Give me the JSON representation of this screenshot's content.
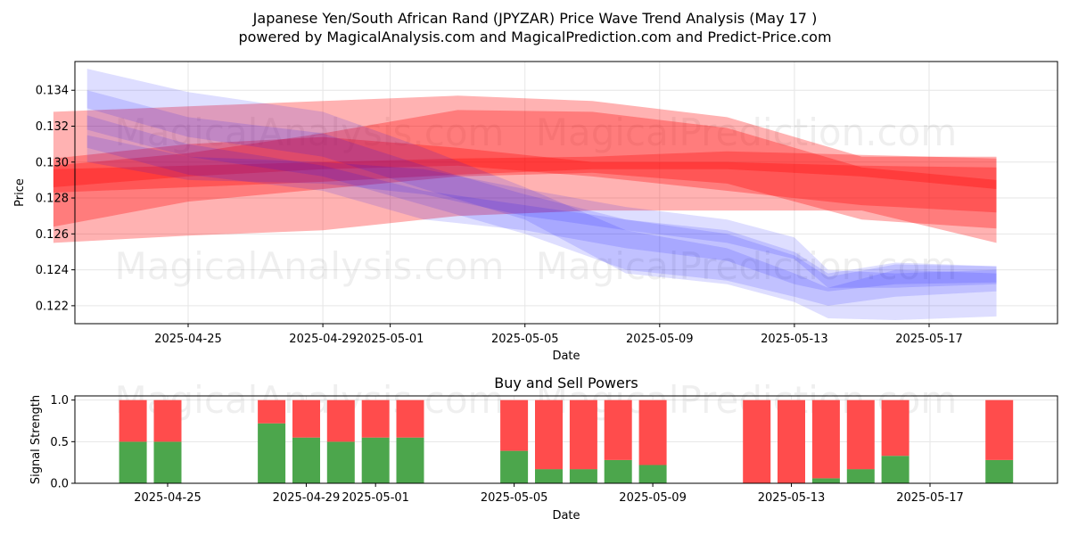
{
  "title_line1": "Japanese Yen/South African Rand (JPYZAR) Price Wave Trend Analysis (May 17 )",
  "title_line2": "powered by MagicalAnalysis.com and MagicalPrediction.com and Predict-Price.com",
  "watermarks": [
    "MagicalAnalysis.com",
    "MagicalPrediction.com"
  ],
  "colors": {
    "predicted_band": "#ff0000",
    "historic_band": "#0000ff",
    "buy": "#4ca64c",
    "sell": "#ff4c4c",
    "grid": "#e6e6e6"
  },
  "chart_data": [
    {
      "type": "area",
      "title": "",
      "xlabel": "Date",
      "ylabel": "Price",
      "x_range": [
        "2025-04-21",
        "2025-05-20"
      ],
      "ylim": [
        0.121,
        0.1356
      ],
      "x_ticks": [
        "2025-04-25",
        "2025-04-29",
        "2025-05-01",
        "2025-05-05",
        "2025-05-09",
        "2025-05-13",
        "2025-05-17"
      ],
      "y_ticks": [
        0.122,
        0.124,
        0.126,
        0.128,
        0.13,
        0.132,
        0.134
      ],
      "grid": true,
      "series": [
        {
          "group": "predicted",
          "x": [
            "2025-04-21",
            "2025-04-25",
            "2025-04-29",
            "2025-05-03",
            "2025-05-07",
            "2025-05-11",
            "2025-05-15",
            "2025-05-19"
          ],
          "upper": [
            0.1328,
            0.1331,
            0.1334,
            0.1337,
            0.1334,
            0.1325,
            0.1303,
            0.1303
          ],
          "lower": [
            0.1255,
            0.1259,
            0.1262,
            0.127,
            0.1273,
            0.1273,
            0.1273,
            0.1255
          ]
        },
        {
          "group": "predicted",
          "x": [
            "2025-04-21",
            "2025-04-25",
            "2025-04-29",
            "2025-05-03",
            "2025-05-07",
            "2025-05-11",
            "2025-05-15",
            "2025-05-19"
          ],
          "upper": [
            0.1298,
            0.1305,
            0.1316,
            0.1329,
            0.1328,
            0.1319,
            0.1297,
            0.129
          ],
          "lower": [
            0.1264,
            0.1278,
            0.1285,
            0.1292,
            0.1294,
            0.1288,
            0.1268,
            0.1263
          ]
        },
        {
          "group": "predicted",
          "x": [
            "2025-04-21",
            "2025-04-25",
            "2025-04-29",
            "2025-05-03",
            "2025-05-07",
            "2025-05-11",
            "2025-05-15",
            "2025-05-19"
          ],
          "upper": [
            0.1302,
            0.131,
            0.1314,
            0.1308,
            0.13,
            0.13,
            0.1298,
            0.1297
          ],
          "lower": [
            0.1286,
            0.1292,
            0.1296,
            0.1298,
            0.1292,
            0.1284,
            0.1276,
            0.1272
          ]
        },
        {
          "group": "predicted",
          "x": [
            "2025-04-21",
            "2025-04-25",
            "2025-04-29",
            "2025-05-03",
            "2025-05-07",
            "2025-05-11",
            "2025-05-15",
            "2025-05-19"
          ],
          "upper": [
            0.1296,
            0.1298,
            0.13,
            0.1302,
            0.1303,
            0.1306,
            0.1304,
            0.1302
          ],
          "lower": [
            0.1283,
            0.1286,
            0.1289,
            0.1293,
            0.1296,
            0.1296,
            0.1292,
            0.1285
          ]
        },
        {
          "group": "historic",
          "x": [
            "2025-04-22",
            "2025-04-25",
            "2025-04-29",
            "2025-05-02",
            "2025-05-05",
            "2025-05-08",
            "2025-05-11",
            "2025-05-13",
            "2025-05-14",
            "2025-05-16",
            "2025-05-19"
          ],
          "upper": [
            0.1352,
            0.1339,
            0.1328,
            0.1308,
            0.1286,
            0.1262,
            0.1252,
            0.1238,
            0.123,
            0.124,
            0.1238
          ],
          "lower": [
            0.133,
            0.1314,
            0.1303,
            0.1285,
            0.1268,
            0.1238,
            0.1232,
            0.1222,
            0.1213,
            0.1212,
            0.1214
          ]
        },
        {
          "group": "historic",
          "x": [
            "2025-04-22",
            "2025-04-25",
            "2025-04-29",
            "2025-05-02",
            "2025-05-05",
            "2025-05-08",
            "2025-05-11",
            "2025-05-13",
            "2025-05-14",
            "2025-05-16",
            "2025-05-19"
          ],
          "upper": [
            0.134,
            0.1325,
            0.1316,
            0.1298,
            0.1282,
            0.1268,
            0.126,
            0.1248,
            0.1236,
            0.1243,
            0.1242
          ],
          "lower": [
            0.1318,
            0.1303,
            0.1292,
            0.1276,
            0.126,
            0.124,
            0.1234,
            0.1225,
            0.122,
            0.1225,
            0.1228
          ]
        },
        {
          "group": "historic",
          "x": [
            "2025-04-22",
            "2025-04-25",
            "2025-04-29",
            "2025-05-02",
            "2025-05-05",
            "2025-05-08",
            "2025-05-11",
            "2025-05-13",
            "2025-05-14",
            "2025-05-16",
            "2025-05-19"
          ],
          "upper": [
            0.1326,
            0.131,
            0.1298,
            0.1284,
            0.1276,
            0.1268,
            0.1262,
            0.125,
            0.1238,
            0.1244,
            0.1242
          ],
          "lower": [
            0.1308,
            0.1293,
            0.1284,
            0.1268,
            0.1262,
            0.1252,
            0.1245,
            0.1232,
            0.1228,
            0.1232,
            0.1233
          ]
        },
        {
          "group": "historic",
          "x": [
            "2025-04-22",
            "2025-04-25",
            "2025-04-29",
            "2025-05-02",
            "2025-05-05",
            "2025-05-08",
            "2025-05-11",
            "2025-05-13",
            "2025-05-14",
            "2025-05-16",
            "2025-05-19"
          ],
          "upper": [
            0.1315,
            0.1303,
            0.13,
            0.1296,
            0.1285,
            0.1275,
            0.1268,
            0.1258,
            0.124,
            0.1238,
            0.124
          ],
          "lower": [
            0.13,
            0.129,
            0.1288,
            0.1282,
            0.127,
            0.1262,
            0.1255,
            0.1246,
            0.123,
            0.123,
            0.1232
          ]
        }
      ]
    },
    {
      "type": "bar",
      "title": "Buy and Sell Powers",
      "xlabel": "Date",
      "ylabel": "Signal Strength",
      "ylim": [
        0,
        1.05
      ],
      "y_ticks": [
        0.0,
        0.5,
        1.0
      ],
      "x_ticks": [
        "2025-04-25",
        "2025-04-29",
        "2025-05-01",
        "2025-05-05",
        "2025-05-09",
        "2025-05-13",
        "2025-05-17"
      ],
      "grid": true,
      "categories": [
        "2025-04-24",
        "2025-04-25",
        "2025-04-28",
        "2025-04-29",
        "2025-04-30",
        "2025-05-01",
        "2025-05-02",
        "2025-05-05",
        "2025-05-06",
        "2025-05-07",
        "2025-05-08",
        "2025-05-09",
        "2025-05-12",
        "2025-05-13",
        "2025-05-14",
        "2025-05-15",
        "2025-05-16",
        "2025-05-19"
      ],
      "series": [
        {
          "name": "Buy",
          "values": [
            0.5,
            0.5,
            0.72,
            0.55,
            0.5,
            0.55,
            0.55,
            0.39,
            0.17,
            0.17,
            0.28,
            0.22,
            0.0,
            0.0,
            0.06,
            0.17,
            0.33,
            0.28
          ]
        },
        {
          "name": "Sell",
          "values": [
            0.5,
            0.5,
            0.28,
            0.45,
            0.5,
            0.45,
            0.45,
            0.61,
            0.83,
            0.83,
            0.72,
            0.78,
            1.0,
            1.0,
            0.94,
            0.83,
            0.67,
            0.72
          ]
        }
      ]
    }
  ]
}
